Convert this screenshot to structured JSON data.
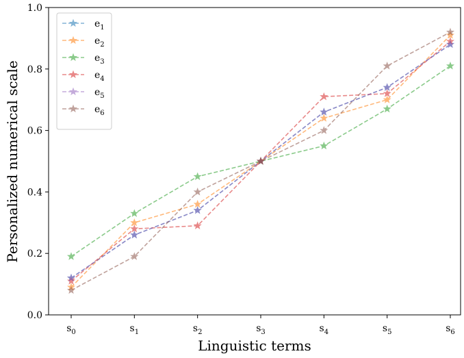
{
  "chart_data": {
    "type": "line",
    "xlabel": "Linguistic terms",
    "ylabel": "Personalized numerical  scale",
    "categories": [
      {
        "base": "s",
        "sub": "0"
      },
      {
        "base": "s",
        "sub": "1"
      },
      {
        "base": "s",
        "sub": "2"
      },
      {
        "base": "s",
        "sub": "3"
      },
      {
        "base": "s",
        "sub": "4"
      },
      {
        "base": "s",
        "sub": "5"
      },
      {
        "base": "s",
        "sub": "6"
      }
    ],
    "ylim": [
      0.0,
      1.0
    ],
    "yticks": [
      "0.0",
      "0.2",
      "0.4",
      "0.6",
      "0.8",
      "1.0"
    ],
    "grid": false,
    "legend_position": "top-left",
    "marker": "star",
    "line_style": "dashed",
    "series": [
      {
        "name": "e",
        "sub": "1",
        "color": "#1f77b4",
        "values": [
          0.12,
          0.26,
          0.34,
          0.5,
          0.66,
          0.74,
          0.88
        ]
      },
      {
        "name": "e",
        "sub": "2",
        "color": "#ff7f0e",
        "values": [
          0.09,
          0.3,
          0.36,
          0.5,
          0.64,
          0.7,
          0.91
        ]
      },
      {
        "name": "e",
        "sub": "3",
        "color": "#2ca02c",
        "values": [
          0.19,
          0.33,
          0.45,
          0.5,
          0.55,
          0.67,
          0.81
        ]
      },
      {
        "name": "e",
        "sub": "4",
        "color": "#d62728",
        "values": [
          0.11,
          0.28,
          0.29,
          0.5,
          0.71,
          0.72,
          0.89
        ]
      },
      {
        "name": "e",
        "sub": "5",
        "color": "#9467bd",
        "values": [
          0.12,
          0.26,
          0.34,
          0.5,
          0.66,
          0.74,
          0.88
        ]
      },
      {
        "name": "e",
        "sub": "6",
        "color": "#8c564b",
        "values": [
          0.08,
          0.19,
          0.4,
          0.5,
          0.6,
          0.81,
          0.92
        ]
      }
    ]
  }
}
